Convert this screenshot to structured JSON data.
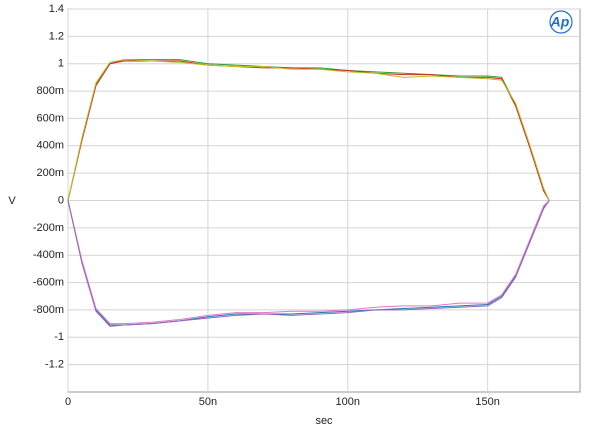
{
  "chart_data": {
    "type": "line",
    "x_label": "sec",
    "y_label": "V",
    "logo": "Ap",
    "x": [
      0,
      5e-09,
      1e-08,
      1.5e-08,
      2e-08,
      3e-08,
      4e-08,
      5e-08,
      6e-08,
      7e-08,
      8e-08,
      9e-08,
      1e-07,
      1.1e-07,
      1.2e-07,
      1.3e-07,
      1.4e-07,
      1.5e-07,
      1.55e-07,
      1.6e-07,
      1.65e-07,
      1.7e-07,
      1.72e-07
    ],
    "series": [
      {
        "color": "#2ca02c",
        "values": [
          0,
          0.45,
          0.85,
          1.0,
          1.03,
          1.03,
          1.03,
          1.0,
          0.99,
          0.98,
          0.97,
          0.97,
          0.95,
          0.94,
          0.93,
          0.92,
          0.91,
          0.91,
          0.9,
          0.7,
          0.4,
          0.08,
          0
        ]
      },
      {
        "color": "#d62728",
        "values": [
          0,
          0.44,
          0.84,
          1.0,
          1.02,
          1.02,
          1.02,
          0.99,
          0.98,
          0.97,
          0.97,
          0.96,
          0.95,
          0.93,
          0.92,
          0.92,
          0.9,
          0.9,
          0.89,
          0.69,
          0.39,
          0.07,
          0
        ]
      },
      {
        "color": "#bcbd22",
        "values": [
          0,
          0.46,
          0.86,
          1.01,
          1.03,
          1.02,
          1.01,
          0.99,
          0.98,
          0.98,
          0.96,
          0.96,
          0.94,
          0.93,
          0.9,
          0.91,
          0.9,
          0.89,
          0.88,
          0.71,
          0.41,
          0.09,
          0
        ]
      },
      {
        "color": "#1f77b4",
        "values": [
          0,
          -0.45,
          -0.8,
          -0.91,
          -0.91,
          -0.9,
          -0.88,
          -0.85,
          -0.83,
          -0.83,
          -0.83,
          -0.82,
          -0.81,
          -0.8,
          -0.79,
          -0.78,
          -0.77,
          -0.76,
          -0.7,
          -0.55,
          -0.3,
          -0.05,
          0
        ]
      },
      {
        "color": "#e377c2",
        "values": [
          0,
          -0.44,
          -0.79,
          -0.9,
          -0.9,
          -0.89,
          -0.87,
          -0.84,
          -0.82,
          -0.82,
          -0.81,
          -0.81,
          -0.8,
          -0.78,
          -0.77,
          -0.77,
          -0.75,
          -0.75,
          -0.69,
          -0.54,
          -0.29,
          -0.04,
          0
        ]
      },
      {
        "color": "#9467bd",
        "values": [
          0,
          -0.46,
          -0.81,
          -0.92,
          -0.91,
          -0.9,
          -0.88,
          -0.86,
          -0.84,
          -0.83,
          -0.84,
          -0.83,
          -0.82,
          -0.8,
          -0.8,
          -0.79,
          -0.78,
          -0.77,
          -0.71,
          -0.56,
          -0.31,
          -0.06,
          0
        ]
      }
    ],
    "xlim": [
      0,
      1.83e-07
    ],
    "xticks": [
      0,
      {
        "value": 5e-08,
        "label": "50n"
      },
      {
        "value": 1e-07,
        "label": "100n"
      },
      {
        "value": 1.5e-07,
        "label": "150n"
      }
    ],
    "ylim": [
      -1.4,
      1.4
    ],
    "yticks": [
      1.4,
      1.2,
      1,
      {
        "value": 0.8,
        "label": "800m"
      },
      {
        "value": 0.6,
        "label": "600m"
      },
      {
        "value": 0.4,
        "label": "400m"
      },
      {
        "value": 0.2,
        "label": "200m"
      },
      0,
      {
        "value": -0.2,
        "label": "-200m"
      },
      {
        "value": -0.4,
        "label": "-400m"
      },
      {
        "value": -0.6,
        "label": "-600m"
      },
      {
        "value": -0.8,
        "label": "-800m"
      },
      -1,
      -1.2
    ],
    "grid": true
  }
}
